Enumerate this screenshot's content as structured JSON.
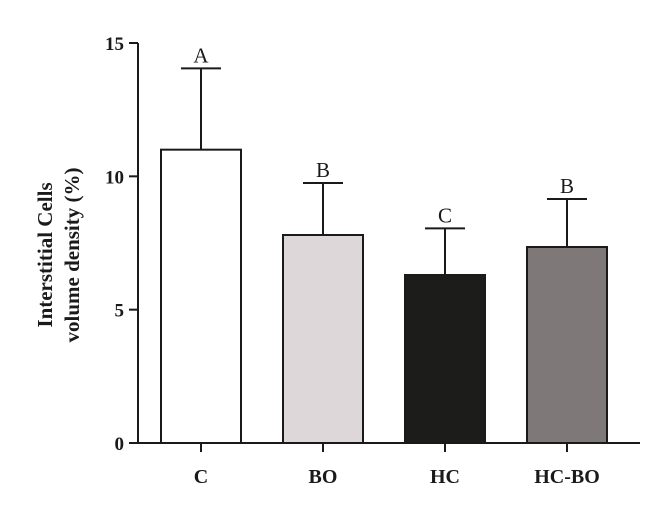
{
  "chart_data": {
    "type": "bar",
    "categories": [
      "C",
      "BO",
      "HC",
      "HC-BO"
    ],
    "values": [
      11.0,
      7.8,
      6.3,
      7.35
    ],
    "error_bars": [
      3.05,
      1.95,
      1.75,
      1.8
    ],
    "significance_letters": [
      "A",
      "B",
      "C",
      "B"
    ],
    "bar_colors": [
      "#ffffff",
      "#ddd7da",
      "#1c1d1b",
      "#7e7879"
    ],
    "ylabel_lines": [
      "Interstitial Cells",
      "volume density (%)"
    ],
    "xlabel": "",
    "ylim": [
      0,
      15
    ],
    "yticks": [
      0,
      5,
      10,
      15
    ],
    "grid": false
  }
}
